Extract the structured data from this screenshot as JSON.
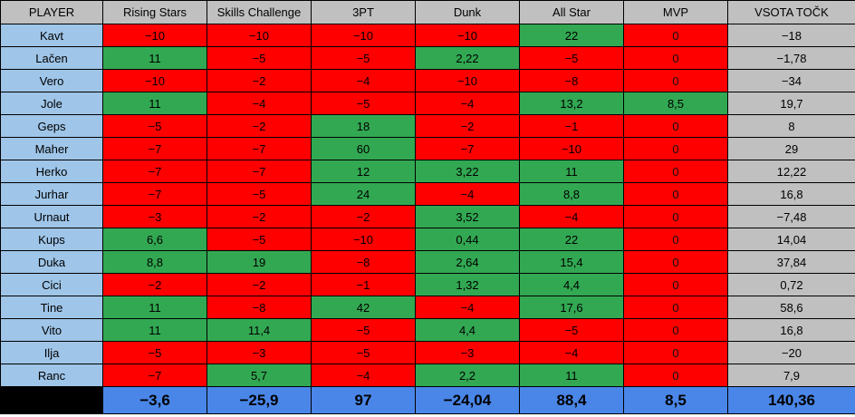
{
  "headers": [
    "PLAYER",
    "Rising Stars",
    "Skills Challenge",
    "3PT",
    "Dunk",
    "All Star",
    "MVP",
    "VSOTA TOČK"
  ],
  "colors": {
    "red": "#ff0000",
    "green": "#32a852",
    "player": "#9fc5e8",
    "header": "#c0c0c0",
    "footer": "#4a86e8"
  },
  "rows": [
    {
      "player": "Kavt",
      "cells": [
        "−10",
        "−10",
        "−10",
        "−10",
        "22",
        "0"
      ],
      "total": "−18"
    },
    {
      "player": "Lačen",
      "cells": [
        "11",
        "−5",
        "−5",
        "2,22",
        "−5",
        "0"
      ],
      "total": "−1,78"
    },
    {
      "player": "Vero",
      "cells": [
        "−10",
        "−2",
        "−4",
        "−10",
        "−8",
        "0"
      ],
      "total": "−34"
    },
    {
      "player": "Jole",
      "cells": [
        "11",
        "−4",
        "−5",
        "−4",
        "13,2",
        "8,5"
      ],
      "total": "19,7"
    },
    {
      "player": "Geps",
      "cells": [
        "−5",
        "−2",
        "18",
        "−2",
        "−1",
        "0"
      ],
      "total": "8"
    },
    {
      "player": "Maher",
      "cells": [
        "−7",
        "−7",
        "60",
        "−7",
        "−10",
        "0"
      ],
      "total": "29"
    },
    {
      "player": "Herko",
      "cells": [
        "−7",
        "−7",
        "12",
        "3,22",
        "11",
        "0"
      ],
      "total": "12,22"
    },
    {
      "player": "Jurhar",
      "cells": [
        "−7",
        "−5",
        "24",
        "−4",
        "8,8",
        "0"
      ],
      "total": "16,8"
    },
    {
      "player": "Urnaut",
      "cells": [
        "−3",
        "−2",
        "−2",
        "3,52",
        "−4",
        "0"
      ],
      "total": "−7,48"
    },
    {
      "player": "Kups",
      "cells": [
        "6,6",
        "−5",
        "−10",
        "0,44",
        "22",
        "0"
      ],
      "total": "14,04"
    },
    {
      "player": "Duka",
      "cells": [
        "8,8",
        "19",
        "−8",
        "2,64",
        "15,4",
        "0"
      ],
      "total": "37,84"
    },
    {
      "player": "Cici",
      "cells": [
        "−2",
        "−2",
        "−1",
        "1,32",
        "4,4",
        "0"
      ],
      "total": "0,72"
    },
    {
      "player": "Tine",
      "cells": [
        "11",
        "−8",
        "42",
        "−4",
        "17,6",
        "0"
      ],
      "total": "58,6"
    },
    {
      "player": "Vito",
      "cells": [
        "11",
        "11,4",
        "−5",
        "4,4",
        "−5",
        "0"
      ],
      "total": "16,8"
    },
    {
      "player": "Ilja",
      "cells": [
        "−5",
        "−3",
        "−5",
        "−3",
        "−4",
        "0"
      ],
      "total": "−20"
    },
    {
      "player": "Ranc",
      "cells": [
        "−7",
        "5,7",
        "−4",
        "2,2",
        "11",
        "0"
      ],
      "total": "7,9"
    }
  ],
  "totals": [
    "−3,6",
    "−25,9",
    "97",
    "−24,04",
    "88,4",
    "8,5",
    "140,36"
  ]
}
